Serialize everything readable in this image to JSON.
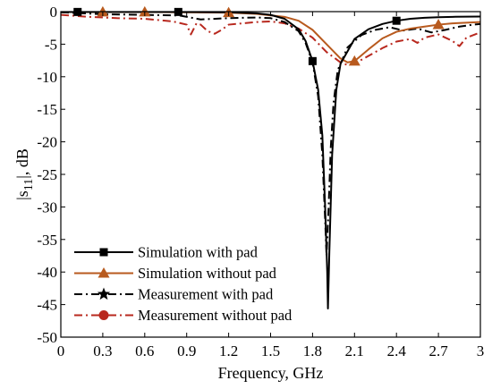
{
  "chart_data": {
    "type": "line",
    "title": "",
    "xlabel": "Frequency, GHz",
    "ylabel": "|s11|, dB",
    "ylabel_main": "|s",
    "ylabel_sub": "11",
    "ylabel_tail": "|, dB",
    "xlim": [
      0,
      3
    ],
    "ylim": [
      -50,
      0
    ],
    "xticks": [
      0,
      0.3,
      0.6,
      0.9,
      1.2,
      1.5,
      1.8,
      2.1,
      2.4,
      2.7,
      3
    ],
    "xtick_labels": [
      "0",
      "0.3",
      "0.6",
      "0.9",
      "1.2",
      "1.5",
      "1.8",
      "2.1",
      "2.4",
      "2.7",
      "3"
    ],
    "yticks": [
      0,
      -5,
      -10,
      -15,
      -20,
      -25,
      -30,
      -35,
      -40,
      -45,
      -50
    ],
    "ytick_labels": [
      "0",
      "-5",
      "-10",
      "-15",
      "-20",
      "-25",
      "-30",
      "-35",
      "-40",
      "-45",
      "-50"
    ],
    "grid": false,
    "legend_position": "bottom-left",
    "series": [
      {
        "name": "Simulation with pad",
        "color": "#000000",
        "line_style": "solid",
        "marker": "square",
        "x": [
          0.0,
          0.12,
          0.3,
          0.6,
          0.84,
          1.2,
          1.4,
          1.5,
          1.6,
          1.7,
          1.75,
          1.8,
          1.84,
          1.87,
          1.89,
          1.905,
          1.91,
          1.92,
          1.94,
          1.97,
          2.0,
          2.1,
          2.2,
          2.3,
          2.4,
          2.5,
          2.6,
          2.7,
          2.8,
          2.9,
          3.0
        ],
        "y": [
          -0.05,
          -0.05,
          -0.05,
          -0.05,
          -0.05,
          -0.1,
          -0.25,
          -0.5,
          -1.1,
          -2.7,
          -4.5,
          -7.6,
          -12.0,
          -19.0,
          -30.0,
          -40.0,
          -45.6,
          -37.0,
          -22.0,
          -12.0,
          -8.0,
          -4.2,
          -2.7,
          -1.9,
          -1.4,
          -1.1,
          -0.95,
          -0.85,
          -0.8,
          -0.78,
          -0.75
        ],
        "marker_x": [
          0.12,
          0.84,
          1.8,
          2.4
        ]
      },
      {
        "name": "Simulation without pad",
        "color": "#b85a1e",
        "line_style": "solid",
        "marker": "triangle",
        "x": [
          0.0,
          0.3,
          0.6,
          0.9,
          1.2,
          1.4,
          1.6,
          1.7,
          1.8,
          1.9,
          2.0,
          2.05,
          2.1,
          2.2,
          2.3,
          2.4,
          2.5,
          2.6,
          2.7,
          2.8,
          2.9,
          3.0
        ],
        "y": [
          -0.05,
          -0.05,
          -0.05,
          -0.1,
          -0.15,
          -0.35,
          -0.8,
          -1.4,
          -2.8,
          -5.0,
          -7.2,
          -7.8,
          -7.6,
          -5.8,
          -4.1,
          -3.1,
          -2.6,
          -2.3,
          -2.0,
          -1.8,
          -1.7,
          -1.6
        ],
        "marker_x": [
          0.3,
          0.6,
          1.2,
          2.1,
          2.7
        ]
      },
      {
        "name": "Measurement with pad",
        "color": "#000000",
        "line_style": "dashdot",
        "marker": "star",
        "x": [
          0.0,
          0.3,
          0.6,
          0.85,
          1.0,
          1.2,
          1.4,
          1.5,
          1.6,
          1.7,
          1.75,
          1.8,
          1.84,
          1.87,
          1.89,
          1.9,
          1.915,
          1.93,
          1.95,
          1.98,
          2.05,
          2.15,
          2.25,
          2.35,
          2.45,
          2.55,
          2.65,
          2.75,
          2.85,
          2.95,
          3.0
        ],
        "y": [
          -0.1,
          -0.4,
          -0.5,
          -0.6,
          -1.2,
          -1.0,
          -0.9,
          -1.0,
          -1.6,
          -3.0,
          -4.8,
          -7.8,
          -13.0,
          -22.0,
          -32.0,
          -37.5,
          -30.0,
          -21.0,
          -14.0,
          -9.0,
          -5.5,
          -3.6,
          -2.8,
          -2.4,
          -2.9,
          -2.6,
          -3.2,
          -2.8,
          -2.3,
          -2.0,
          -1.9
        ],
        "marker_x": []
      },
      {
        "name": "Measurement without pad",
        "color": "#b8281e",
        "line_style": "dashdot",
        "marker": "circle",
        "x": [
          0.0,
          0.2,
          0.4,
          0.6,
          0.8,
          0.9,
          0.93,
          0.97,
          1.0,
          1.05,
          1.1,
          1.15,
          1.2,
          1.3,
          1.4,
          1.5,
          1.6,
          1.7,
          1.8,
          1.9,
          2.0,
          2.05,
          2.1,
          2.2,
          2.3,
          2.4,
          2.5,
          2.55,
          2.6,
          2.7,
          2.8,
          2.85,
          2.9,
          3.0
        ],
        "y": [
          -0.5,
          -0.8,
          -1.0,
          -1.1,
          -1.5,
          -2.0,
          -3.5,
          -1.8,
          -2.0,
          -3.0,
          -3.4,
          -2.8,
          -2.0,
          -1.8,
          -1.6,
          -1.5,
          -1.8,
          -2.6,
          -4.0,
          -6.2,
          -7.8,
          -8.2,
          -8.0,
          -6.8,
          -5.6,
          -4.6,
          -4.2,
          -4.8,
          -4.0,
          -3.5,
          -4.5,
          -5.3,
          -4.0,
          -3.2
        ],
        "marker_x": []
      }
    ]
  }
}
